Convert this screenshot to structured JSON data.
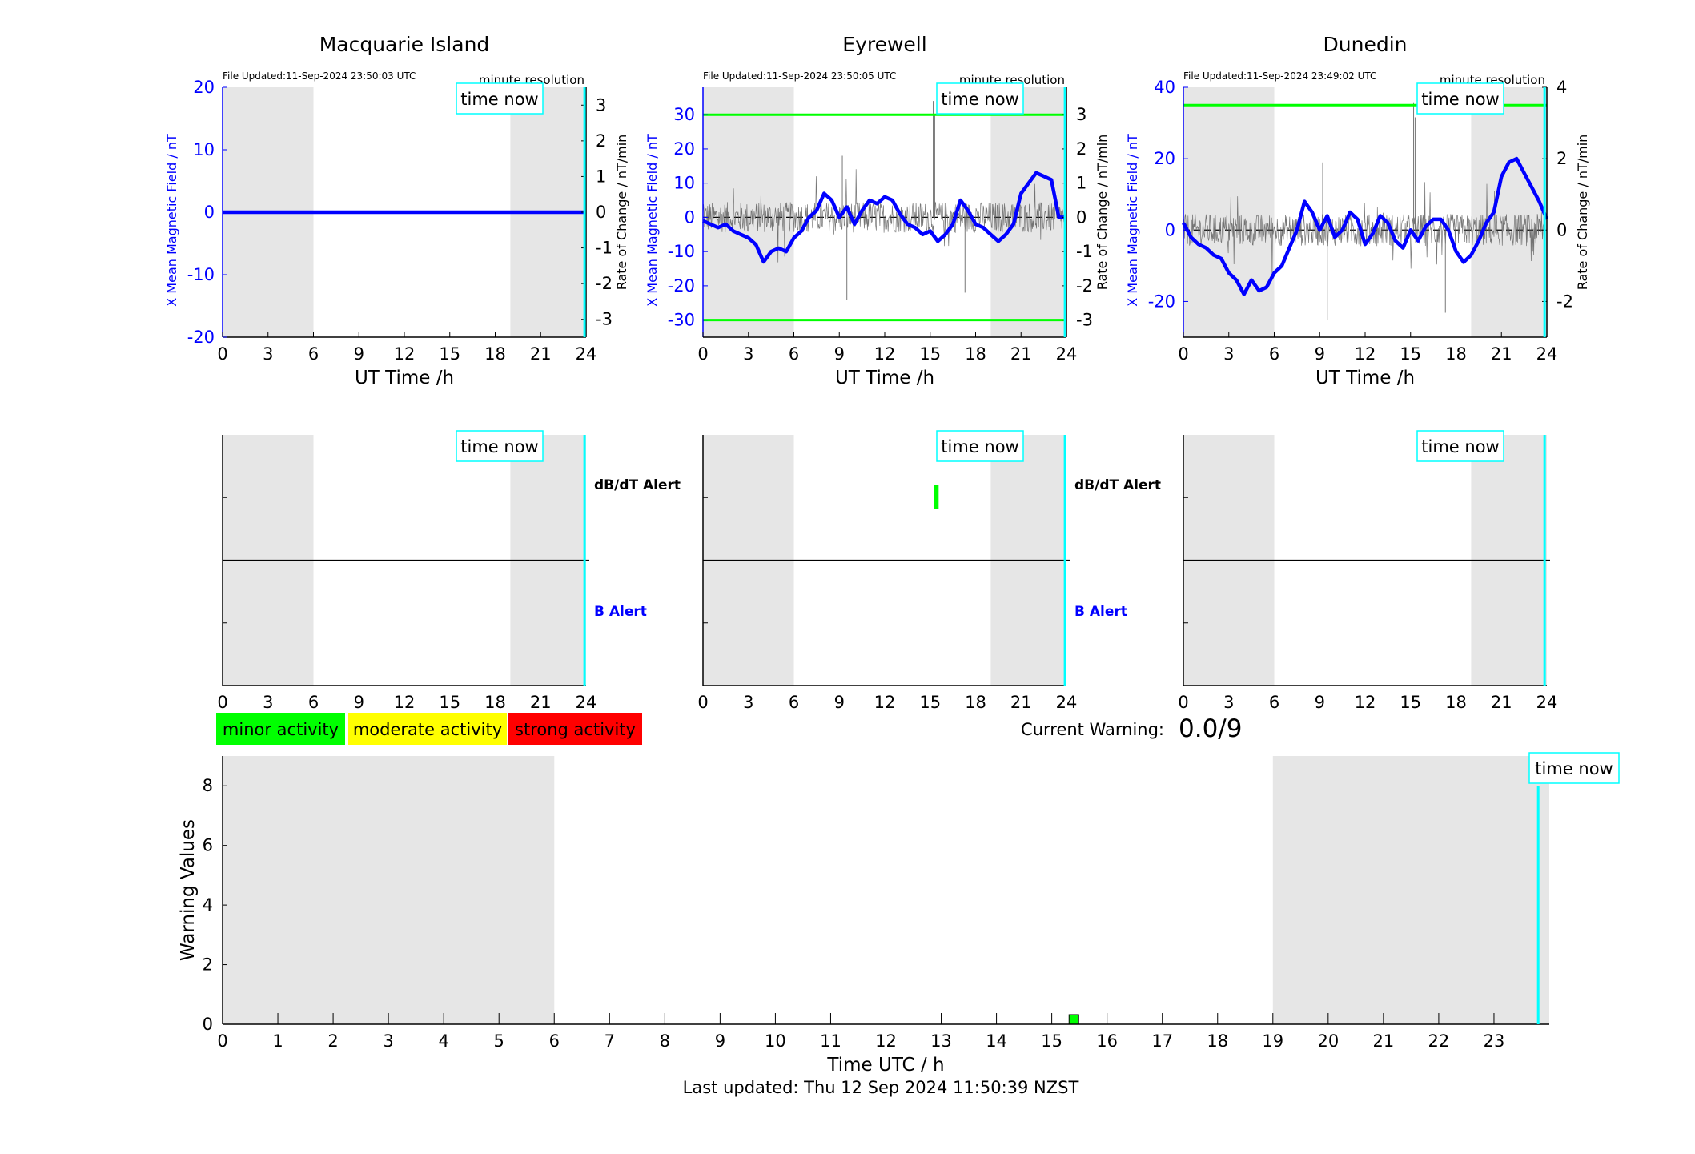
{
  "footer": {
    "last_updated": "Last updated: Thu 12 Sep 2024 11:50:39 NZST"
  },
  "labels": {
    "time_now": "time now",
    "minute_resolution": "minute resolution",
    "x_axis": "UT Time /h",
    "y_left": "X Mean Magnetic Field / nT",
    "y_right": "Rate of Change / nT/min",
    "dbdt_alert": "dB/dT Alert",
    "b_alert": "B Alert",
    "current_warning_label": "Current Warning:",
    "current_warning_value": "0.0/9"
  },
  "legend": [
    {
      "label": "minor activity",
      "color": "#00ff00"
    },
    {
      "label": "moderate activity",
      "color": "#ffff00"
    },
    {
      "label": "strong activity",
      "color": "#ff0000"
    }
  ],
  "colors": {
    "field": "#0000ff",
    "rate": "#000000",
    "threshold": "#00ff00",
    "time_now": "#00ffff",
    "night_shade": "#e6e6e6"
  },
  "chart_data": [
    {
      "type": "line",
      "station": "Macquarie Island",
      "file_updated": "File Updated:11-Sep-2024 23:50:03 UTC",
      "xlabel": "UT Time /h",
      "ylabel": "X Mean Magnetic Field / nT",
      "ylabel_right": "Rate of Change / nT/min",
      "xlim": [
        0,
        24
      ],
      "xticks": [
        0,
        3,
        6,
        9,
        12,
        15,
        18,
        21,
        24
      ],
      "ylim": [
        -20,
        20
      ],
      "yticks": [
        -20,
        -10,
        0,
        10,
        20
      ],
      "ylim_right": [
        -3.5,
        3.5
      ],
      "yticks_right": [
        -3,
        -2,
        -1,
        0,
        1,
        2,
        3
      ],
      "night_bands": [
        [
          0,
          6
        ],
        [
          19,
          24
        ]
      ],
      "time_now": 23.9,
      "thresholds": [],
      "series": [
        {
          "x": [
            0,
            4,
            8,
            12,
            16,
            20,
            23.95
          ],
          "values": [
            0,
            0,
            0,
            0,
            0,
            0,
            0
          ]
        }
      ],
      "rate_noise": false
    },
    {
      "type": "line",
      "station": "Eyrewell",
      "file_updated": "File Updated:11-Sep-2024 23:50:05 UTC",
      "xlabel": "UT Time /h",
      "ylabel": "X Mean Magnetic Field / nT",
      "ylabel_right": "Rate of Change / nT/min",
      "xlim": [
        0,
        24
      ],
      "xticks": [
        0,
        3,
        6,
        9,
        12,
        15,
        18,
        21,
        24
      ],
      "ylim": [
        -35,
        38
      ],
      "yticks": [
        -30,
        -20,
        -10,
        0,
        10,
        20,
        30
      ],
      "ylim_right": [
        -3.5,
        3.8
      ],
      "yticks_right": [
        -3,
        -2,
        -1,
        0,
        1,
        2,
        3
      ],
      "night_bands": [
        [
          0,
          6
        ],
        [
          19,
          24
        ]
      ],
      "time_now": 23.9,
      "thresholds": [
        30,
        -30
      ],
      "series": [
        {
          "x": [
            0,
            0.5,
            1,
            1.5,
            2,
            2.5,
            3,
            3.5,
            4,
            4.5,
            5,
            5.5,
            6,
            6.5,
            7,
            7.5,
            8,
            8.5,
            9,
            9.5,
            10,
            10.5,
            11,
            11.5,
            12,
            12.5,
            13,
            13.5,
            14,
            14.5,
            15,
            15.5,
            16,
            16.5,
            17,
            17.5,
            18,
            18.5,
            19,
            19.5,
            20,
            20.5,
            21,
            21.5,
            22,
            22.5,
            23,
            23.5,
            24
          ],
          "values": [
            -1,
            -2,
            -3,
            -2,
            -4,
            -5,
            -6,
            -8,
            -13,
            -10,
            -9,
            -10,
            -6,
            -4,
            0,
            2,
            7,
            5,
            0,
            3,
            -2,
            2,
            5,
            4,
            6,
            5,
            1,
            -2,
            -3,
            -5,
            -4,
            -7,
            -5,
            -2,
            5,
            2,
            -2,
            -3,
            -5,
            -7,
            -5,
            -2,
            7,
            10,
            13,
            12,
            11,
            0,
            0
          ]
        }
      ],
      "rate_noise": true
    },
    {
      "type": "line",
      "station": "Dunedin",
      "file_updated": "File Updated:11-Sep-2024 23:49:02 UTC",
      "xlabel": "UT Time /h",
      "ylabel": "X Mean Magnetic Field / nT",
      "ylabel_right": "Rate of Change / nT/min",
      "xlim": [
        0,
        24
      ],
      "xticks": [
        0,
        3,
        6,
        9,
        12,
        15,
        18,
        21,
        24
      ],
      "ylim": [
        -30,
        40
      ],
      "yticks": [
        -20,
        0,
        20,
        40
      ],
      "ylim_right": [
        -3,
        4
      ],
      "yticks_right": [
        -2,
        0,
        2,
        4
      ],
      "night_bands": [
        [
          0,
          6
        ],
        [
          19,
          24
        ]
      ],
      "time_now": 23.85,
      "thresholds": [
        35
      ],
      "series": [
        {
          "x": [
            0,
            0.5,
            1,
            1.5,
            2,
            2.5,
            3,
            3.5,
            4,
            4.5,
            5,
            5.5,
            6,
            6.5,
            7,
            7.5,
            8,
            8.5,
            9,
            9.5,
            10,
            10.5,
            11,
            11.5,
            12,
            12.5,
            13,
            13.5,
            14,
            14.5,
            15,
            15.5,
            16,
            16.5,
            17,
            17.5,
            18,
            18.5,
            19,
            19.5,
            20,
            20.5,
            21,
            21.5,
            22,
            22.5,
            23,
            23.5,
            24
          ],
          "values": [
            2,
            -2,
            -4,
            -5,
            -7,
            -8,
            -12,
            -14,
            -18,
            -14,
            -17,
            -16,
            -12,
            -10,
            -5,
            0,
            8,
            5,
            0,
            4,
            -2,
            0,
            5,
            3,
            -4,
            -1,
            4,
            2,
            -3,
            -5,
            0,
            -3,
            1,
            3,
            3,
            0,
            -6,
            -9,
            -7,
            -3,
            2,
            5,
            15,
            19,
            20,
            16,
            12,
            8,
            3
          ]
        }
      ],
      "rate_noise": true
    },
    {
      "type": "bar",
      "panel": "alert",
      "station": "Macquarie Island",
      "xlim": [
        0,
        24
      ],
      "xticks": [
        0,
        3,
        6,
        9,
        12,
        15,
        18,
        21,
        24
      ],
      "night_bands": [
        [
          0,
          6
        ],
        [
          19,
          24
        ]
      ],
      "time_now": 23.9,
      "alert_labels": true,
      "alerts": []
    },
    {
      "type": "bar",
      "panel": "alert",
      "station": "Eyrewell",
      "xlim": [
        0,
        24
      ],
      "xticks": [
        0,
        3,
        6,
        9,
        12,
        15,
        18,
        21,
        24
      ],
      "night_bands": [
        [
          0,
          6
        ],
        [
          19,
          24
        ]
      ],
      "time_now": 23.9,
      "alert_labels": true,
      "alerts": [
        {
          "kind": "dbdt",
          "x": 15.4
        }
      ]
    },
    {
      "type": "bar",
      "panel": "alert",
      "station": "Dunedin",
      "xlim": [
        0,
        24
      ],
      "xticks": [
        0,
        3,
        6,
        9,
        12,
        15,
        18,
        21,
        24
      ],
      "night_bands": [
        [
          0,
          6
        ],
        [
          19,
          24
        ]
      ],
      "time_now": 23.85,
      "alert_labels": false,
      "alerts": []
    },
    {
      "type": "bar",
      "panel": "warning",
      "xlabel": "Time UTC / h",
      "ylabel": "Warning Values",
      "xlim": [
        0,
        24
      ],
      "xticks": [
        0,
        1,
        2,
        3,
        4,
        5,
        6,
        7,
        8,
        9,
        10,
        11,
        12,
        13,
        14,
        15,
        16,
        17,
        18,
        19,
        20,
        21,
        22,
        23
      ],
      "ylim": [
        0,
        9
      ],
      "yticks": [
        0,
        2,
        4,
        6,
        8
      ],
      "night_bands": [
        [
          0,
          6
        ],
        [
          19,
          24
        ]
      ],
      "time_now": 23.8,
      "bars": [
        {
          "x": 15.4,
          "value": 0.3,
          "level": "minor"
        }
      ]
    }
  ]
}
